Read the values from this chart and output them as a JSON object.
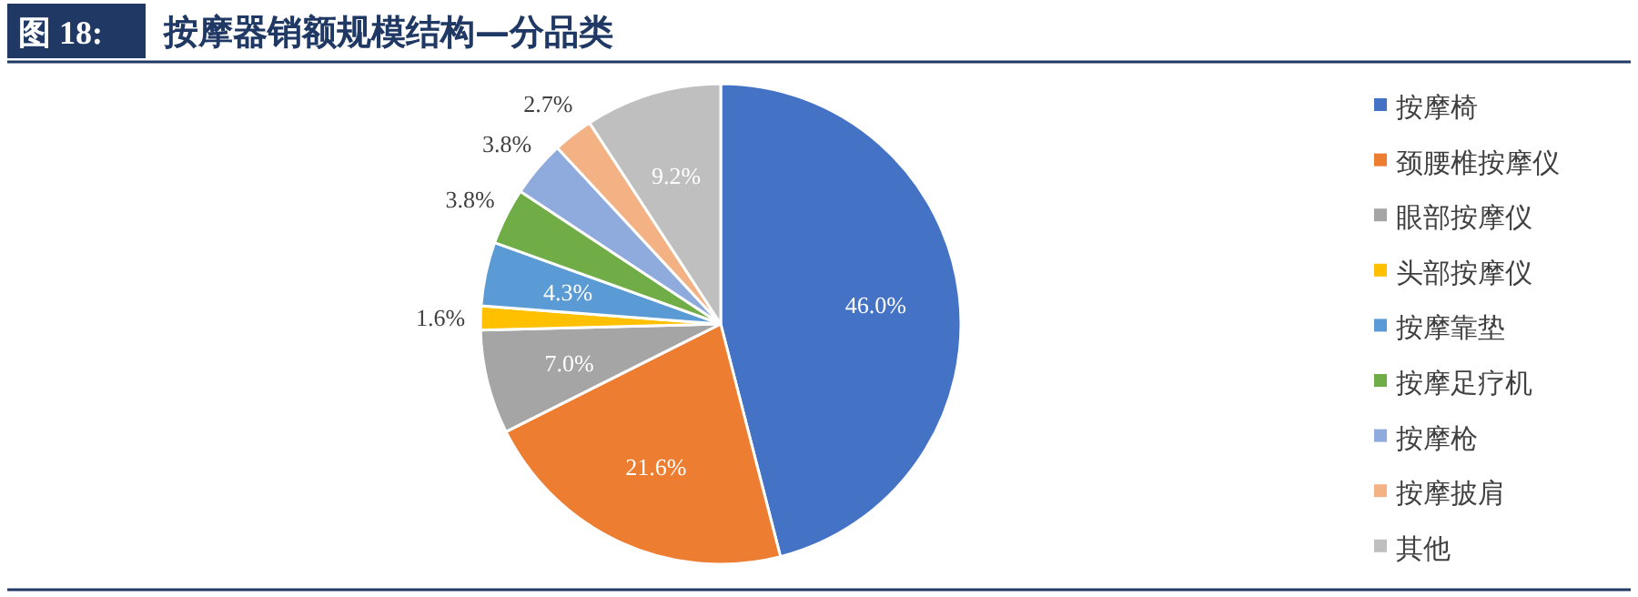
{
  "chart_data": {
    "type": "pie",
    "title": "按摩器销额规模结构—分品类",
    "annotations": [
      "图 18:"
    ],
    "categories": [
      "按摩椅",
      "颈腰椎按摩仪",
      "眼部按摩仪",
      "头部按摩仪",
      "按摩靠垫",
      "按摩足疗机",
      "按摩枪",
      "按摩披肩",
      "其他"
    ],
    "values": [
      46.0,
      21.6,
      7.0,
      1.6,
      4.3,
      3.8,
      3.8,
      2.7,
      9.2
    ],
    "value_labels": [
      "46.0%",
      "21.6%",
      "7.0%",
      "1.6%",
      "4.3%",
      "3.8%",
      "3.8%",
      "2.7%",
      "9.2%"
    ],
    "colors": [
      "#4472c4",
      "#ed7d31",
      "#a5a5a5",
      "#ffc000",
      "#5b9bd5",
      "#70ad47",
      "#8faadc",
      "#f4b183",
      "#bfbfbf"
    ],
    "legend": "right"
  }
}
